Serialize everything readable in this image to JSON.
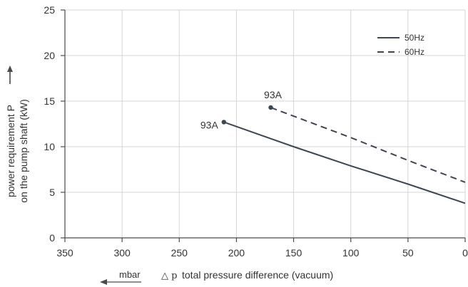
{
  "chart_data": {
    "type": "line",
    "x_axis": {
      "label": "total pressure difference (vacuum)",
      "symbol": "△ p",
      "unit": "mbar",
      "range": [
        350,
        0
      ],
      "reversed": true,
      "ticks": [
        350,
        300,
        250,
        200,
        150,
        100,
        50,
        0
      ]
    },
    "y_axis": {
      "label_lines": [
        "power requirement P",
        "on the pump shaft (kW)"
      ],
      "range": [
        0,
        25
      ],
      "ticks": [
        0,
        5,
        10,
        15,
        20,
        25
      ]
    },
    "grid": true,
    "legend": {
      "position": "top-right",
      "items": [
        {
          "name": "50Hz",
          "style": "solid"
        },
        {
          "name": "60Hz",
          "style": "dashed"
        }
      ]
    },
    "series": [
      {
        "name": "50Hz",
        "style": "solid",
        "color": "#3d4652",
        "points": [
          [
            211,
            12.7
          ],
          [
            150,
            10.0
          ],
          [
            100,
            7.9
          ],
          [
            50,
            5.9
          ],
          [
            0,
            3.8
          ]
        ],
        "marker": {
          "x": 211,
          "y": 12.7,
          "label": "93A"
        }
      },
      {
        "name": "60Hz",
        "style": "dashed",
        "color": "#3d4652",
        "points": [
          [
            170,
            14.3
          ],
          [
            100,
            11.0
          ],
          [
            50,
            8.5
          ],
          [
            0,
            6.1
          ]
        ],
        "marker": {
          "x": 170,
          "y": 14.3,
          "label": "93A"
        }
      }
    ]
  }
}
